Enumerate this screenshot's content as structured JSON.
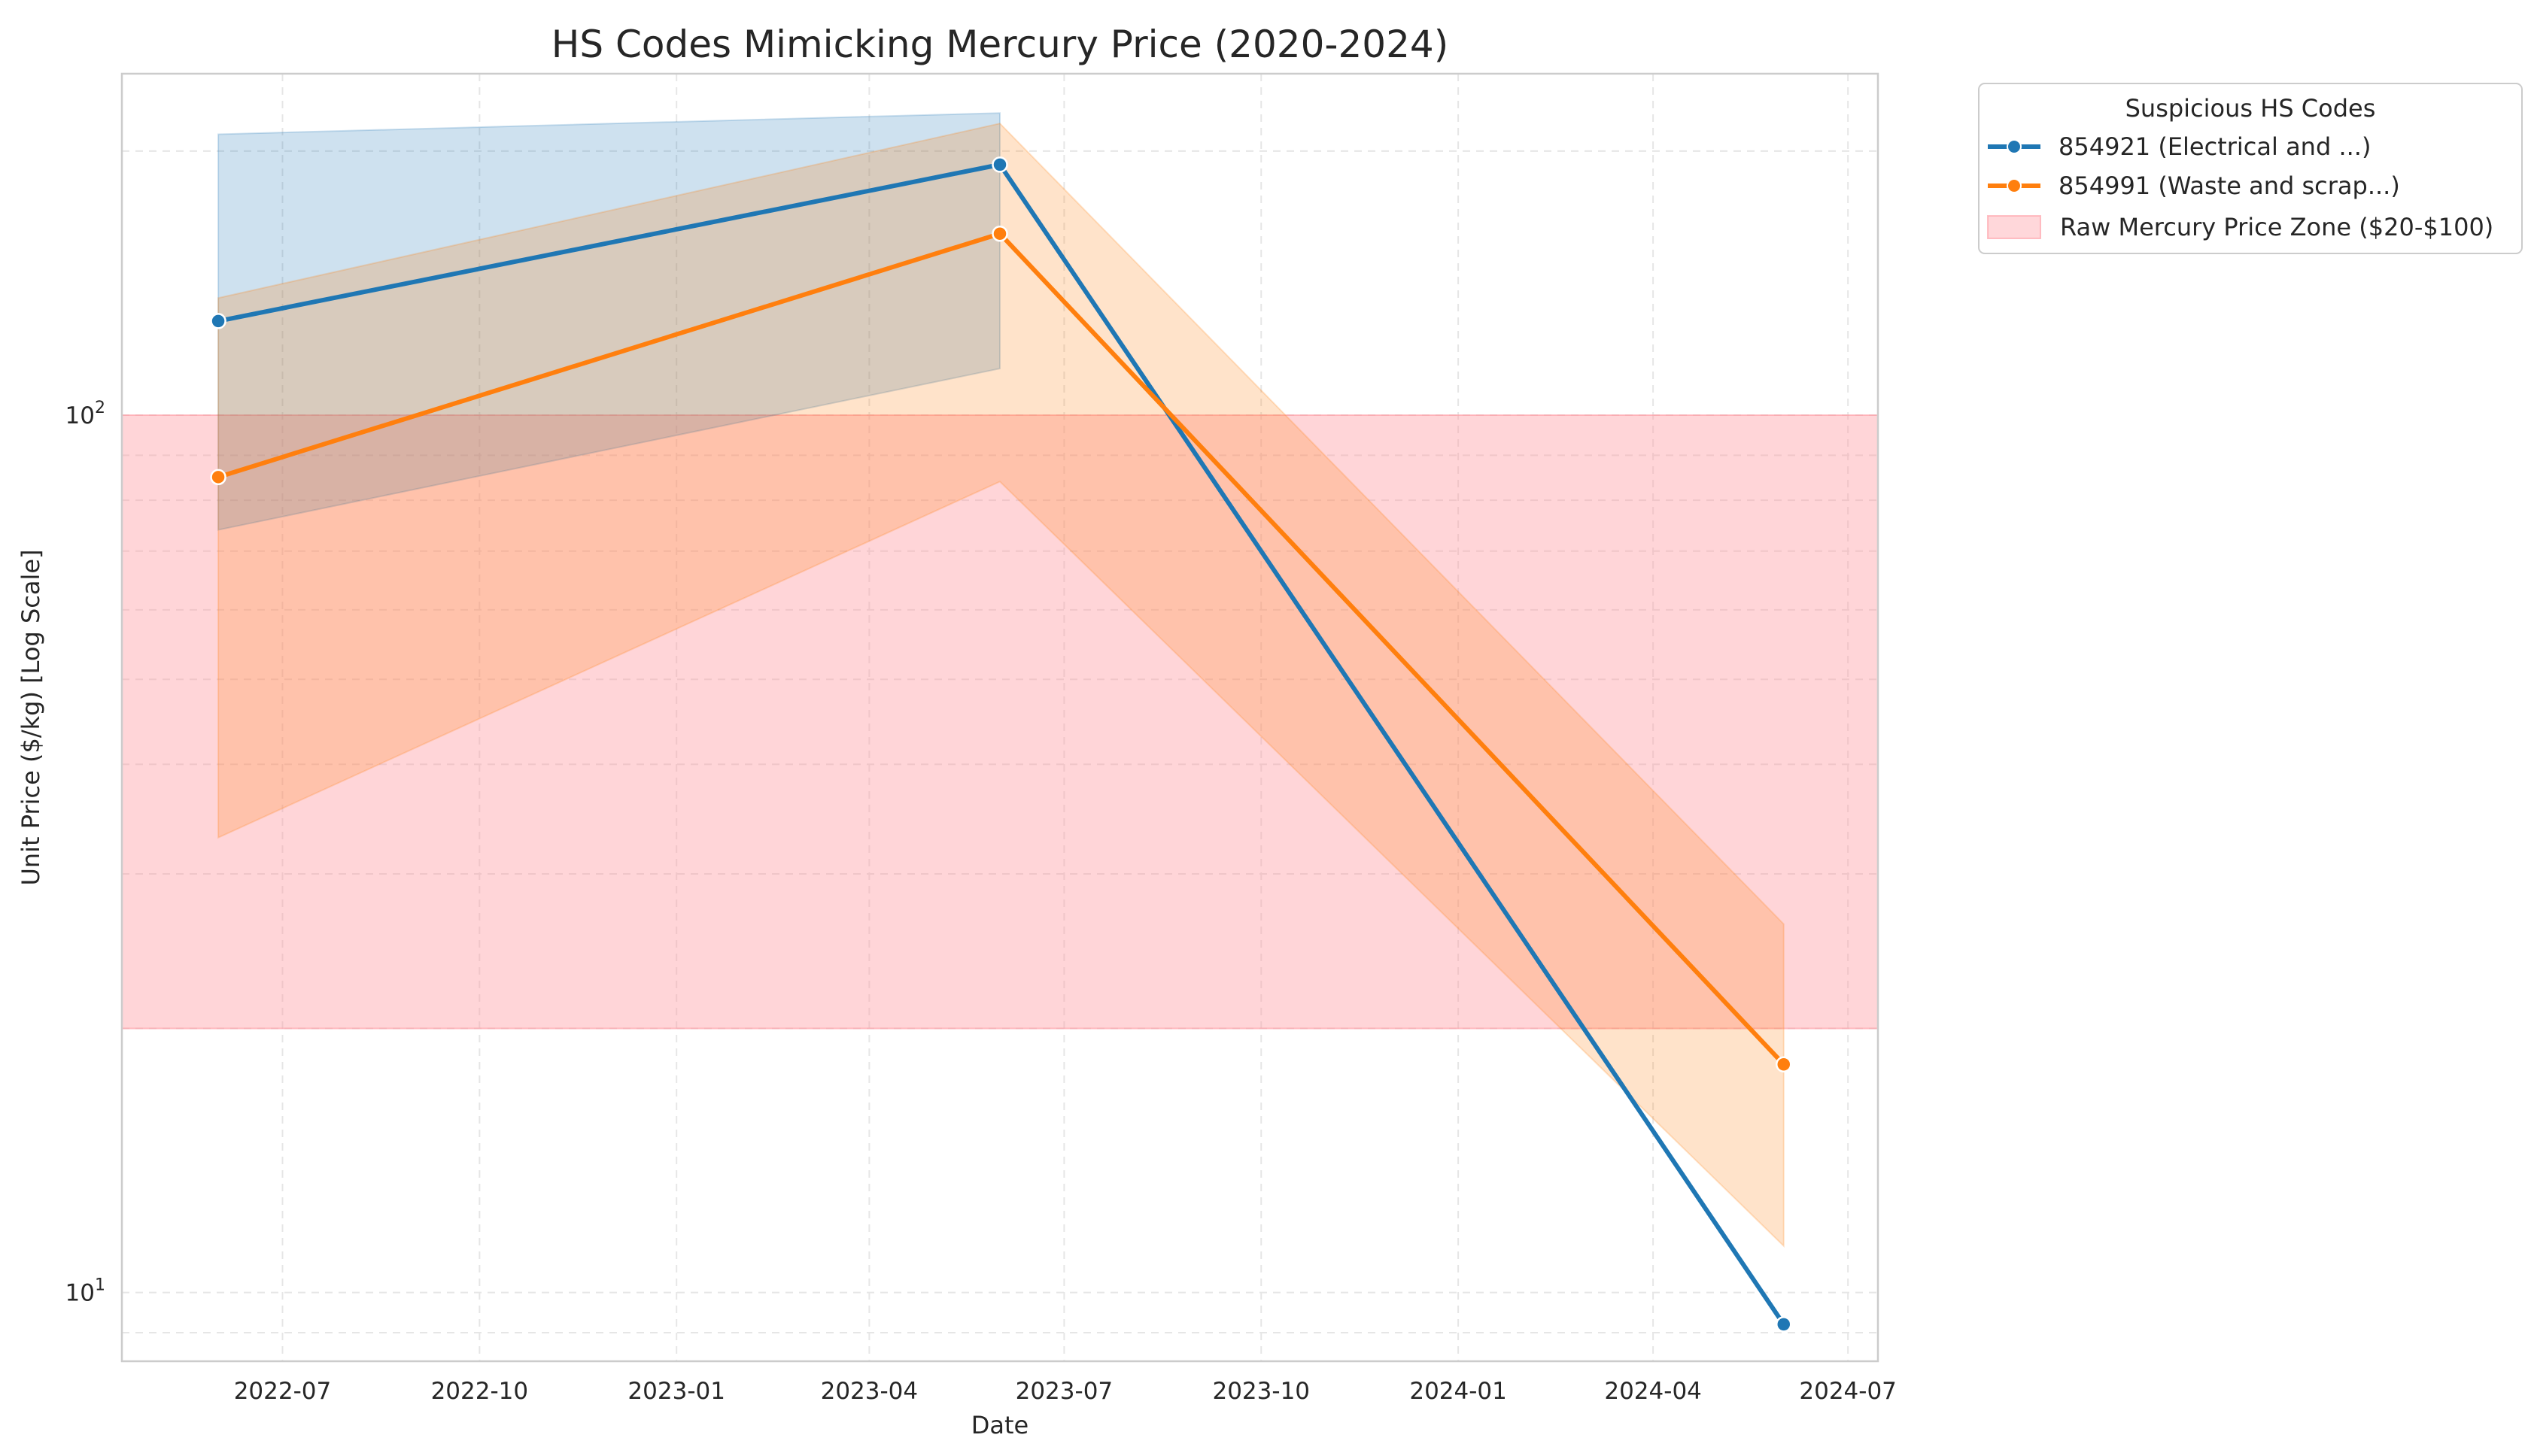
{
  "chart_data": {
    "type": "line",
    "title": "HS Codes Mimicking Mercury Price (2020-2024)",
    "xlabel": "Date",
    "ylabel": "Unit Price ($/kg) [Log Scale]",
    "yscale": "log",
    "ylim": [
      8.35,
      245
    ],
    "xlim": [
      "2022-04-17",
      "2024-07-15"
    ],
    "x_ticks": [
      "2022-07",
      "2022-10",
      "2023-01",
      "2023-04",
      "2023-07",
      "2023-10",
      "2024-01",
      "2024-04",
      "2024-07"
    ],
    "y_ticks": [
      {
        "value": 10,
        "base": "10",
        "exp": "1"
      },
      {
        "value": 100,
        "base": "10",
        "exp": "2"
      }
    ],
    "grid": true,
    "x": [
      "2022-06-01",
      "2023-06-01",
      "2024-06-01"
    ],
    "series": [
      {
        "name": "854921 (Electrical and ...)",
        "color": "#1f77b4",
        "values": [
          128,
          193,
          9.2
        ],
        "ci_low": [
          74,
          113,
          null
        ],
        "ci_high": [
          209,
          221,
          null
        ]
      },
      {
        "name": "854991 (Waste and scrap...)",
        "color": "#ff7f0e",
        "values": [
          85,
          161,
          18.2
        ],
        "ci_low": [
          33,
          84,
          11.3
        ],
        "ci_high": [
          136,
          215,
          26.3
        ]
      }
    ],
    "reference_band": {
      "label": "Raw Mercury Price Zone ($20-$100)",
      "low": 20,
      "high": 100,
      "color": "#ff9aa2"
    },
    "legend": {
      "title": "Suspicious HS Codes",
      "placement": "outside upper right"
    }
  }
}
